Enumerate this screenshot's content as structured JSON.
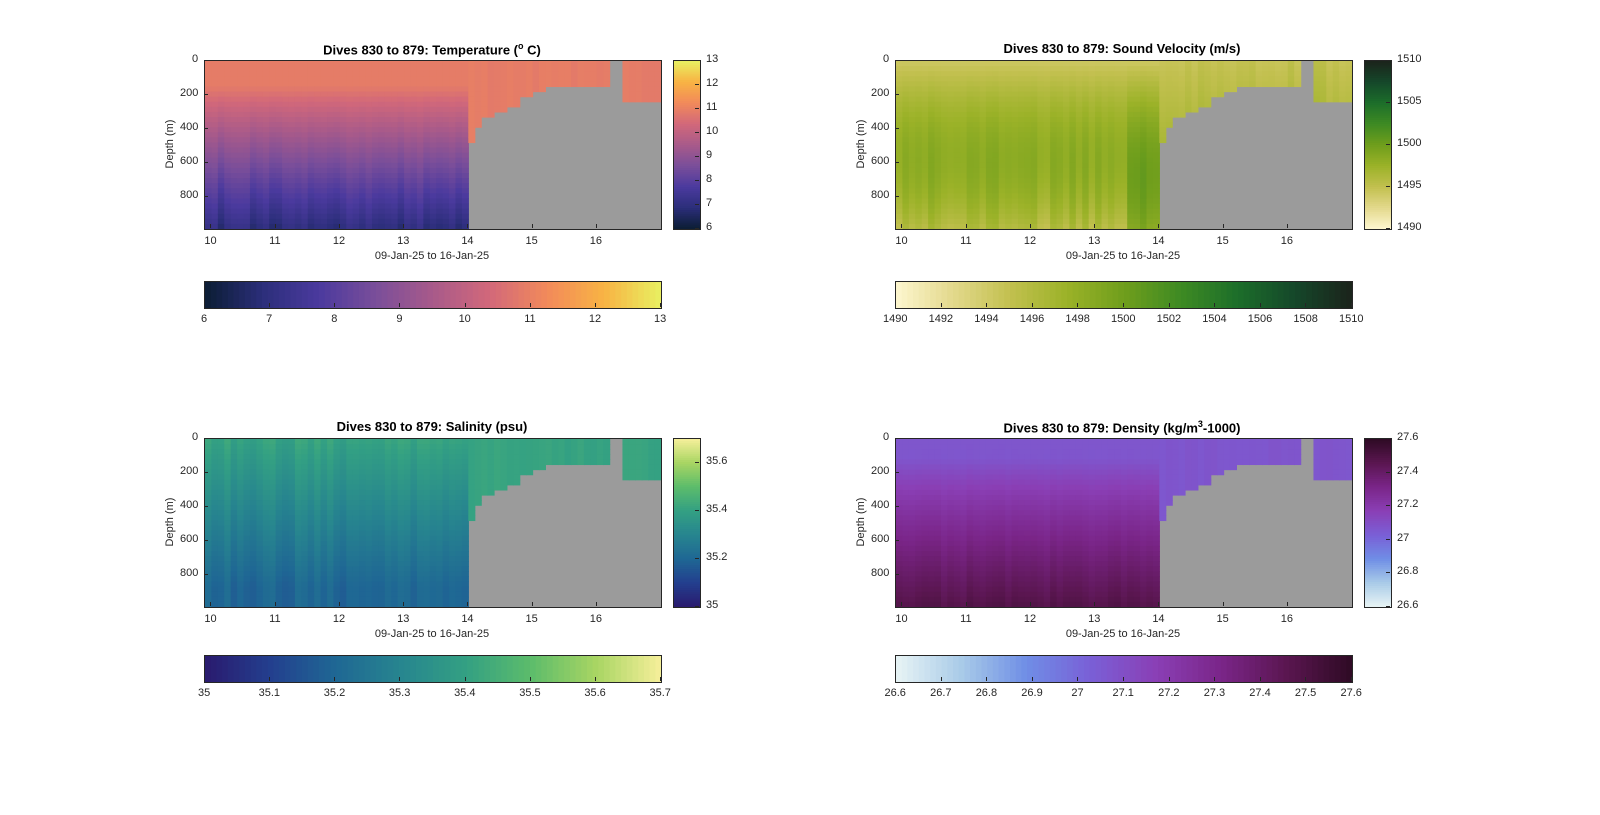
{
  "chart_data": [
    {
      "id": "temperature",
      "type": "heatmap",
      "title_main": "Dives 830 to 879: Temperature (",
      "title_sup": "o",
      "title_tail": " C)",
      "xlabel": "09-Jan-25 to 16-Jan-25",
      "ylabel": "Depth (m)",
      "x_ticks": [
        "10",
        "11",
        "12",
        "13",
        "14",
        "15",
        "16"
      ],
      "x_tick_values": [
        10,
        11,
        12,
        13,
        14,
        15,
        16
      ],
      "xlim": [
        9.9,
        17.0
      ],
      "y_ticks": [
        "0",
        "200",
        "400",
        "600",
        "800"
      ],
      "y_tick_values": [
        0,
        200,
        400,
        600,
        800
      ],
      "ylim": [
        0,
        990
      ],
      "colorbar_right_ticks": [
        "13",
        "12",
        "11",
        "10",
        "9",
        "8",
        "7",
        "6"
      ],
      "colorbar_right_values": [
        13,
        12,
        11,
        10,
        9,
        8,
        7,
        6
      ],
      "colorbar_bottom_ticks": [
        "6",
        "7",
        "8",
        "9",
        "10",
        "11",
        "12",
        "13"
      ],
      "colorbar_bottom_values": [
        6,
        7,
        8,
        9,
        10,
        11,
        12,
        13
      ],
      "clim": [
        6,
        13
      ],
      "colormap": [
        "#0b1d33",
        "#2b2e7a",
        "#4b3a9e",
        "#7a4e9a",
        "#a85a8a",
        "#d2687a",
        "#f28a5a",
        "#f8b344",
        "#e8f061"
      ],
      "surface_value": 10.9,
      "deep_value": 6.9,
      "no_data_color": "#9b9b9b"
    },
    {
      "id": "sound-velocity",
      "type": "heatmap",
      "title_main": "Dives 830 to 879: Sound Velocity (m/s)",
      "title_sup": "",
      "title_tail": "",
      "xlabel": "09-Jan-25 to 16-Jan-25",
      "ylabel": "Depth (m)",
      "x_ticks": [
        "10",
        "11",
        "12",
        "13",
        "14",
        "15",
        "16"
      ],
      "x_tick_values": [
        10,
        11,
        12,
        13,
        14,
        15,
        16
      ],
      "xlim": [
        9.9,
        17.0
      ],
      "y_ticks": [
        "0",
        "200",
        "400",
        "600",
        "800"
      ],
      "y_tick_values": [
        0,
        200,
        400,
        600,
        800
      ],
      "ylim": [
        0,
        990
      ],
      "colorbar_right_ticks": [
        "1510",
        "1505",
        "1500",
        "1495",
        "1490"
      ],
      "colorbar_right_values": [
        1510,
        1505,
        1500,
        1495,
        1490
      ],
      "colorbar_bottom_ticks": [
        "1490",
        "1492",
        "1494",
        "1496",
        "1498",
        "1500",
        "1502",
        "1504",
        "1506",
        "1508",
        "1510"
      ],
      "colorbar_bottom_values": [
        1490,
        1492,
        1494,
        1496,
        1498,
        1500,
        1502,
        1504,
        1506,
        1508,
        1510
      ],
      "clim": [
        1490,
        1510
      ],
      "colormap": [
        "#fdf6cf",
        "#e3d98c",
        "#c2c04f",
        "#9bb228",
        "#6f9e1c",
        "#3e8a23",
        "#1c6e2a",
        "#15472a",
        "#1b231b"
      ],
      "surface_value": 1494.2,
      "deep_value": 1495.8,
      "no_data_color": "#9b9b9b"
    },
    {
      "id": "salinity",
      "type": "heatmap",
      "title_main": "Dives 830 to 879: Salinity (psu)",
      "title_sup": "",
      "title_tail": "",
      "xlabel": "09-Jan-25 to 16-Jan-25",
      "ylabel": "Depth (m)",
      "x_ticks": [
        "10",
        "11",
        "12",
        "13",
        "14",
        "15",
        "16"
      ],
      "x_tick_values": [
        10,
        11,
        12,
        13,
        14,
        15,
        16
      ],
      "xlim": [
        9.9,
        17.0
      ],
      "y_ticks": [
        "0",
        "200",
        "400",
        "600",
        "800"
      ],
      "y_tick_values": [
        0,
        200,
        400,
        600,
        800
      ],
      "ylim": [
        0,
        990
      ],
      "colorbar_right_ticks": [
        "35.6",
        "35.4",
        "35.2",
        "35"
      ],
      "colorbar_right_values": [
        35.6,
        35.4,
        35.2,
        35.0
      ],
      "colorbar_bottom_ticks": [
        "35",
        "35.1",
        "35.2",
        "35.3",
        "35.4",
        "35.5",
        "35.6",
        "35.7"
      ],
      "colorbar_bottom_values": [
        35.0,
        35.1,
        35.2,
        35.3,
        35.4,
        35.5,
        35.6,
        35.7
      ],
      "clim": [
        35.0,
        35.7
      ],
      "colormap": [
        "#2a1a6e",
        "#233f8e",
        "#1f6794",
        "#27858f",
        "#33a083",
        "#5cbc6b",
        "#a8d563",
        "#f6ef9a"
      ],
      "surface_value": 35.41,
      "deep_value": 35.2,
      "no_data_color": "#9b9b9b"
    },
    {
      "id": "density",
      "type": "heatmap",
      "title_main": "Dives 830 to 879: Density (kg/m",
      "title_sup": "3",
      "title_tail": "-1000)",
      "xlabel": "09-Jan-25 to 16-Jan-25",
      "ylabel": "Depth (m)",
      "x_ticks": [
        "10",
        "11",
        "12",
        "13",
        "14",
        "15",
        "16"
      ],
      "x_tick_values": [
        10,
        11,
        12,
        13,
        14,
        15,
        16
      ],
      "xlim": [
        9.9,
        17.0
      ],
      "y_ticks": [
        "0",
        "200",
        "400",
        "600",
        "800"
      ],
      "y_tick_values": [
        0,
        200,
        400,
        600,
        800
      ],
      "ylim": [
        0,
        990
      ],
      "colorbar_right_ticks": [
        "27.6",
        "27.4",
        "27.2",
        "27",
        "26.8",
        "26.6"
      ],
      "colorbar_right_values": [
        27.6,
        27.4,
        27.2,
        27.0,
        26.8,
        26.6
      ],
      "colorbar_bottom_ticks": [
        "26.6",
        "26.7",
        "26.8",
        "26.9",
        "27",
        "27.1",
        "27.2",
        "27.3",
        "27.4",
        "27.5",
        "27.6"
      ],
      "colorbar_bottom_values": [
        26.6,
        26.7,
        26.8,
        26.9,
        27.0,
        27.1,
        27.2,
        27.3,
        27.4,
        27.5,
        27.6
      ],
      "clim": [
        26.6,
        27.6
      ],
      "colormap": [
        "#e8f4f5",
        "#a9cbe8",
        "#6f8ee6",
        "#7a5fd6",
        "#8a3fb5",
        "#7a2588",
        "#5a1650",
        "#2e0b24"
      ],
      "surface_value": 27.07,
      "deep_value": 27.48,
      "no_data_color": "#9b9b9b"
    }
  ]
}
